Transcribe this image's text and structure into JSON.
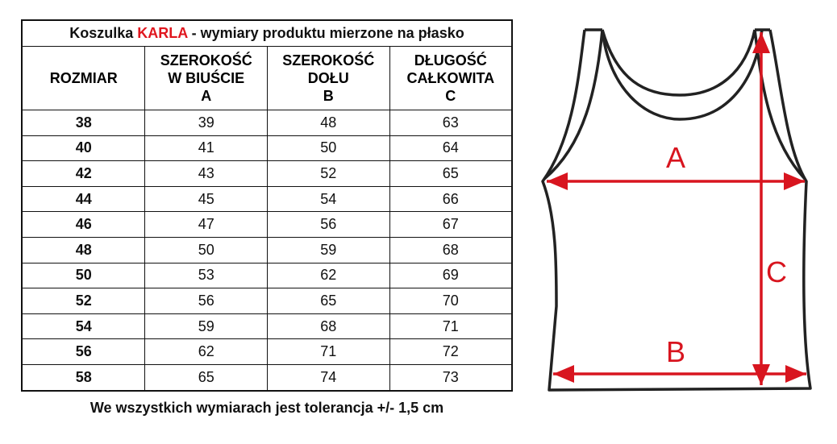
{
  "title": {
    "prefix": "Koszulka ",
    "name": "KARLA",
    "suffix": " - wymiary produktu mierzone na płasko"
  },
  "headers": [
    [
      "ROZMIAR"
    ],
    [
      "SZEROKOŚĆ",
      "W BIUŚCIE",
      "A"
    ],
    [
      "SZEROKOŚĆ",
      "DOŁU",
      "B"
    ],
    [
      "DŁUGOŚĆ",
      "CAŁKOWITA",
      "C"
    ]
  ],
  "rows": [
    [
      "38",
      "39",
      "48",
      "63"
    ],
    [
      "40",
      "41",
      "50",
      "64"
    ],
    [
      "42",
      "43",
      "52",
      "65"
    ],
    [
      "44",
      "45",
      "54",
      "66"
    ],
    [
      "46",
      "47",
      "56",
      "67"
    ],
    [
      "48",
      "50",
      "59",
      "68"
    ],
    [
      "50",
      "53",
      "62",
      "69"
    ],
    [
      "52",
      "56",
      "65",
      "70"
    ],
    [
      "54",
      "59",
      "68",
      "71"
    ],
    [
      "56",
      "62",
      "71",
      "72"
    ],
    [
      "58",
      "65",
      "74",
      "73"
    ]
  ],
  "footer": "We wszystkich wymiarach jest tolerancja +/- 1,5 cm",
  "diagram": {
    "labels": {
      "a": "A",
      "b": "B",
      "c": "C"
    },
    "arrow_color": "#d8151f",
    "outline_color": "#222222"
  },
  "colors": {
    "accent": "#e0161e"
  }
}
